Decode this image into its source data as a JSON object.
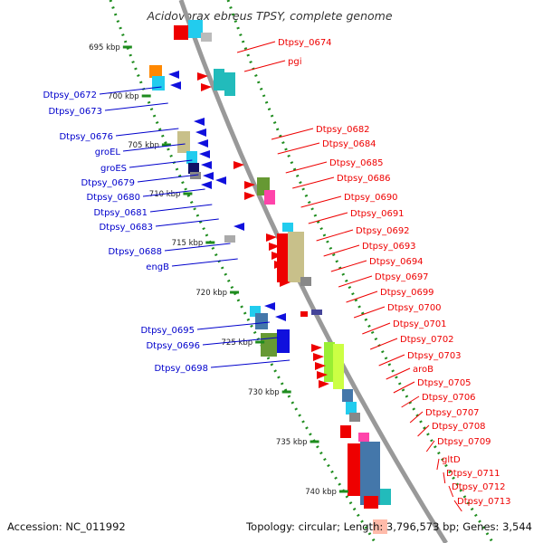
{
  "title": "Acidovorax ebreus TPSY, complete genome",
  "footer": {
    "accession": "Accession: NC_011992",
    "topology": "Topology: circular; Length: 3,796,573 bp; Genes: 3,544"
  },
  "scale_ticks": [
    "695 kbp",
    "700 kbp",
    "705 kbp",
    "710 kbp",
    "715 kbp",
    "720 kbp",
    "725 kbp",
    "730 kbp",
    "735 kbp",
    "740 kbp"
  ],
  "colors": {
    "forward_label": "#ee0000",
    "reverse_label": "#0000cc",
    "backbone": "#999999",
    "tick": "#1e8c1e"
  },
  "forward_genes": [
    "Dtpsy_0674",
    "pgi",
    "Dtpsy_0682",
    "Dtpsy_0684",
    "Dtpsy_0685",
    "Dtpsy_0686",
    "Dtpsy_0690",
    "Dtpsy_0691",
    "Dtpsy_0692",
    "Dtpsy_0693",
    "Dtpsy_0694",
    "Dtpsy_0697",
    "Dtpsy_0699",
    "Dtpsy_0700",
    "Dtpsy_0701",
    "Dtpsy_0702",
    "Dtpsy_0703",
    "aroB",
    "Dtpsy_0705",
    "Dtpsy_0706",
    "Dtpsy_0707",
    "Dtpsy_0708",
    "Dtpsy_0709",
    "gltD",
    "Dtpsy_0711",
    "Dtpsy_0712",
    "Dtpsy_0713"
  ],
  "reverse_genes": [
    "Dtpsy_0672",
    "Dtpsy_0673",
    "Dtpsy_0676",
    "groEL",
    "groES",
    "Dtpsy_0679",
    "Dtpsy_0680",
    "Dtpsy_0681",
    "Dtpsy_0683",
    "Dtpsy_0688",
    "engB",
    "Dtpsy_0695",
    "Dtpsy_0696",
    "Dtpsy_0698"
  ]
}
